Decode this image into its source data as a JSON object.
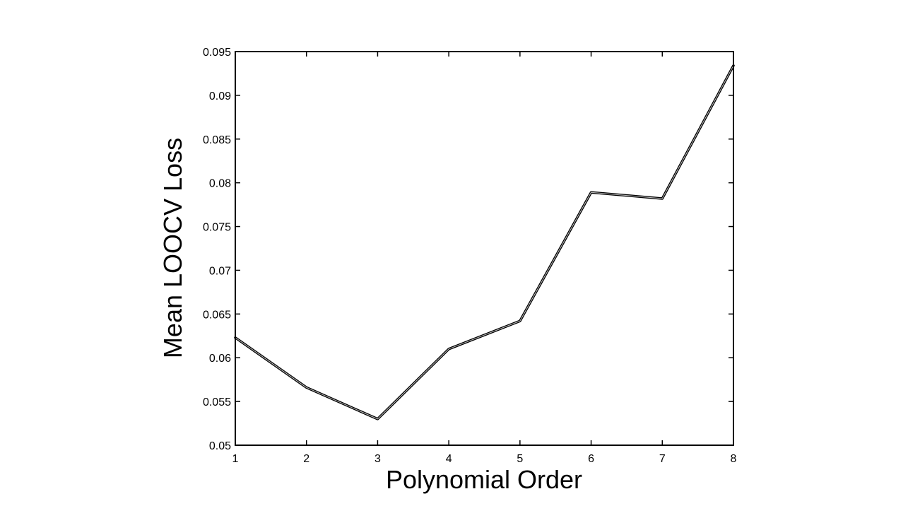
{
  "chart_data": {
    "type": "line",
    "title": "",
    "xlabel": "Polynomial Order",
    "ylabel": "Mean LOOCV Loss",
    "x": [
      1,
      2,
      3,
      4,
      5,
      6,
      7,
      8
    ],
    "series": [
      {
        "values": [
          0.0623,
          0.0566,
          0.053,
          0.061,
          0.0642,
          0.0789,
          0.0782,
          0.0934
        ]
      }
    ],
    "xlim": [
      1,
      8
    ],
    "ylim": [
      0.05,
      0.095
    ],
    "xticks": [
      "1",
      "2",
      "3",
      "4",
      "5",
      "6",
      "7",
      "8"
    ],
    "yticks": [
      "0.05",
      "0.055",
      "0.06",
      "0.065",
      "0.07",
      "0.075",
      "0.08",
      "0.085",
      "0.09",
      "0.095"
    ],
    "grid": false,
    "line_color": "#000000"
  }
}
